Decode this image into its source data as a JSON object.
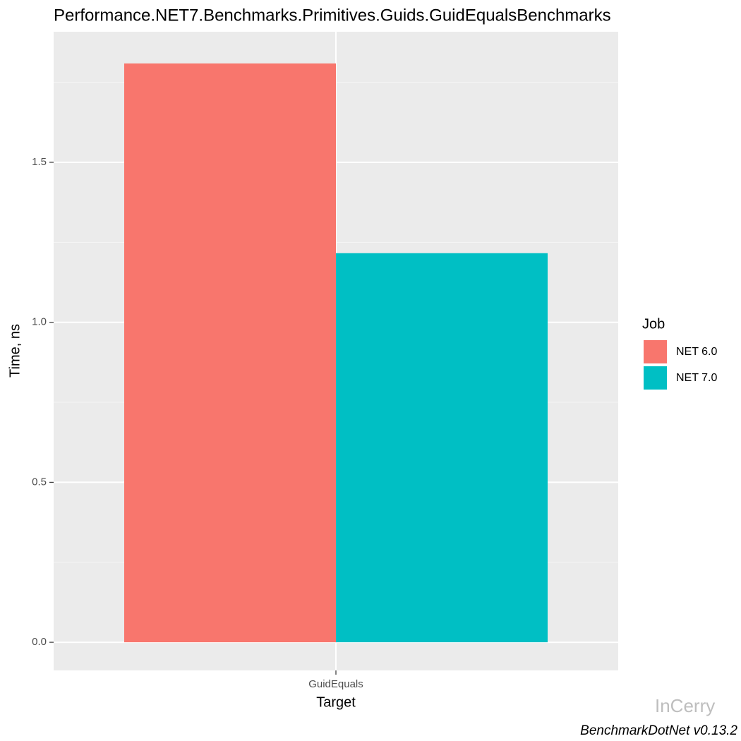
{
  "chart_data": {
    "type": "bar",
    "title": "Performance.NET7.Benchmarks.Primitives.Guids.GuidEqualsBenchmarks",
    "x_label": "Target",
    "y_label": "Time, ns",
    "categories": [
      "GuidEquals"
    ],
    "series": [
      {
        "name": "NET 6.0",
        "color": "#F8766D",
        "values": [
          1.809
        ]
      },
      {
        "name": "NET 7.0",
        "color": "#00BFC4",
        "values": [
          1.216
        ]
      }
    ],
    "legend_title": "Job",
    "legend_position": "right",
    "ylim": [
      -0.088,
      1.908
    ],
    "yticks": [
      {
        "value": 0,
        "label": "0.0"
      },
      0.5,
      {
        "value": 1,
        "label": "1.0"
      },
      1.5
    ],
    "minor_yticks": [
      0.25,
      0.75,
      1.25,
      1.75
    ],
    "grid": true,
    "caption": "BenchmarkDotNet v0.13.2",
    "watermark": "InCerry"
  }
}
